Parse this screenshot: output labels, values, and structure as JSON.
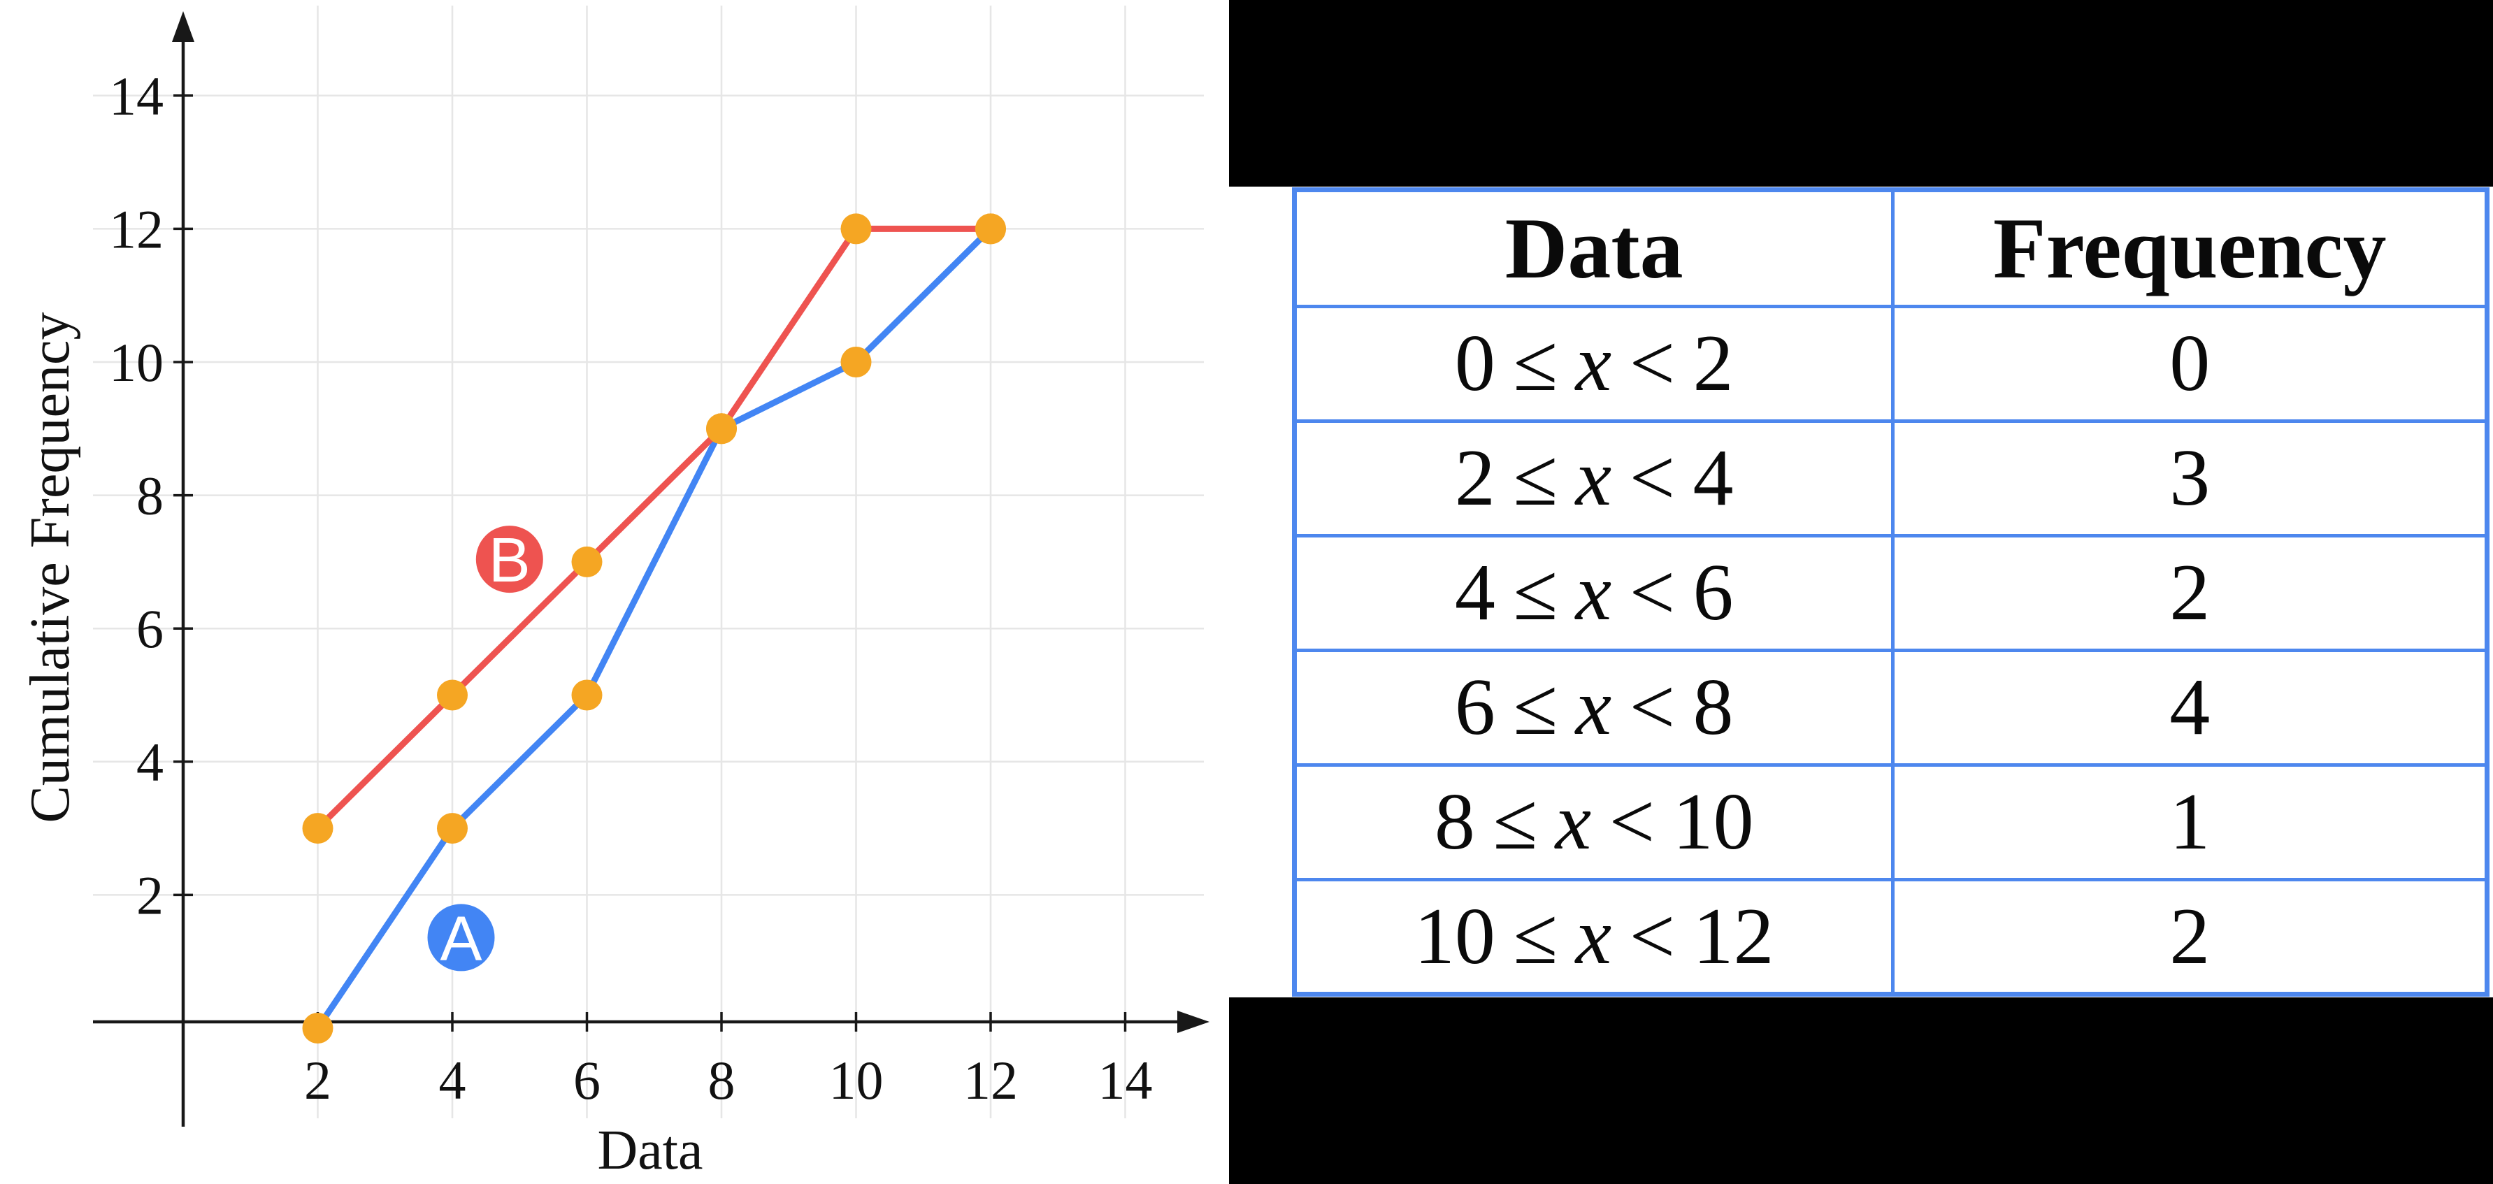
{
  "chart": {
    "x_tick_labels": [
      "2",
      "4",
      "6",
      "8",
      "10",
      "12",
      "14"
    ],
    "y_tick_labels": [
      "2",
      "4",
      "6",
      "8",
      "10",
      "12",
      "14"
    ]
  },
  "chart_data": {
    "type": "line",
    "title": "",
    "xlabel": "Data",
    "ylabel": "Cumulative Frequency",
    "xlim": [
      0,
      15.5
    ],
    "ylim": [
      0,
      15.5
    ],
    "grid": true,
    "x_ticks": [
      2,
      4,
      6,
      8,
      10,
      12,
      14
    ],
    "y_ticks": [
      2,
      4,
      6,
      8,
      10,
      12,
      14
    ],
    "x": [
      2,
      4,
      6,
      8,
      10,
      12
    ],
    "series": [
      {
        "name": "A",
        "color": "#4285f4",
        "values": [
          0,
          3,
          5,
          9,
          10,
          12
        ]
      },
      {
        "name": "B",
        "color": "#ee5350",
        "values": [
          3,
          5,
          7,
          9,
          12,
          12
        ]
      }
    ],
    "point_color": "#f5a623",
    "annotations": [
      {
        "text": "A",
        "x": 4.13,
        "y": 1.36,
        "color": "#4285f4"
      },
      {
        "text": "B",
        "x": 4.85,
        "y": 7.04,
        "color": "#ee5350"
      }
    ]
  },
  "table": {
    "border_color": "#4d87ee",
    "headers": [
      "Data",
      "Frequency"
    ],
    "rows": [
      {
        "lower": "0",
        "leq": "≤",
        "var": "x",
        "lt": "<",
        "upper": "2",
        "freq": "0"
      },
      {
        "lower": "2",
        "leq": "≤",
        "var": "x",
        "lt": "<",
        "upper": "4",
        "freq": "3"
      },
      {
        "lower": "4",
        "leq": "≤",
        "var": "x",
        "lt": "<",
        "upper": "6",
        "freq": "2"
      },
      {
        "lower": "6",
        "leq": "≤",
        "var": "x",
        "lt": "<",
        "upper": "8",
        "freq": "4"
      },
      {
        "lower": "8",
        "leq": "≤",
        "var": "x",
        "lt": "<",
        "upper": "10",
        "freq": "1"
      },
      {
        "lower": "10",
        "leq": "≤",
        "var": "x",
        "lt": "<",
        "upper": "12",
        "freq": "2"
      }
    ]
  }
}
